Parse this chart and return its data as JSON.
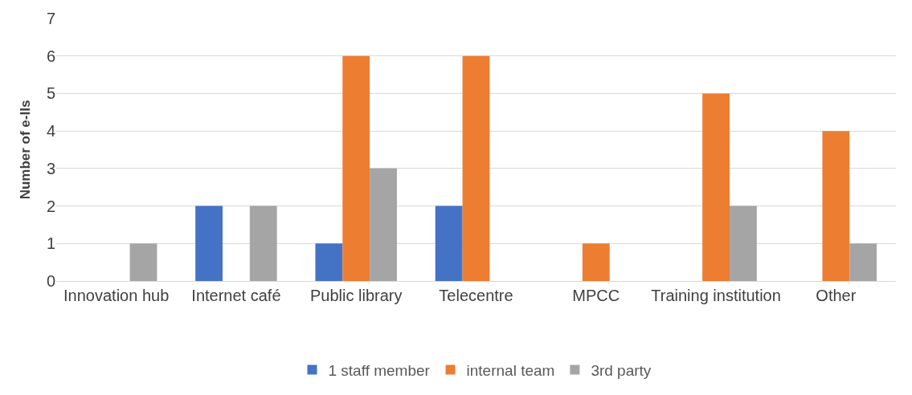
{
  "chart_data": {
    "type": "bar",
    "ylabel": "Number of e-IIs",
    "categories": [
      "Innovation hub",
      "Internet café",
      "Public library",
      "Telecentre",
      "MPCC",
      "Training institution",
      "Other"
    ],
    "series": [
      {
        "name": "1 staff member",
        "color": "#4472c4",
        "values": [
          0,
          2,
          1,
          2,
          0,
          0,
          0
        ]
      },
      {
        "name": "internal team",
        "color": "#ed7d31",
        "values": [
          0,
          0,
          6,
          6,
          1,
          5,
          4
        ]
      },
      {
        "name": "3rd party",
        "color": "#a5a5a5",
        "values": [
          1,
          2,
          3,
          0,
          0,
          2,
          1
        ]
      }
    ],
    "ylim": [
      0,
      7
    ],
    "yticks": [
      0,
      1,
      2,
      3,
      4,
      5,
      6,
      7
    ],
    "grid": "y",
    "legend": "bottom"
  }
}
